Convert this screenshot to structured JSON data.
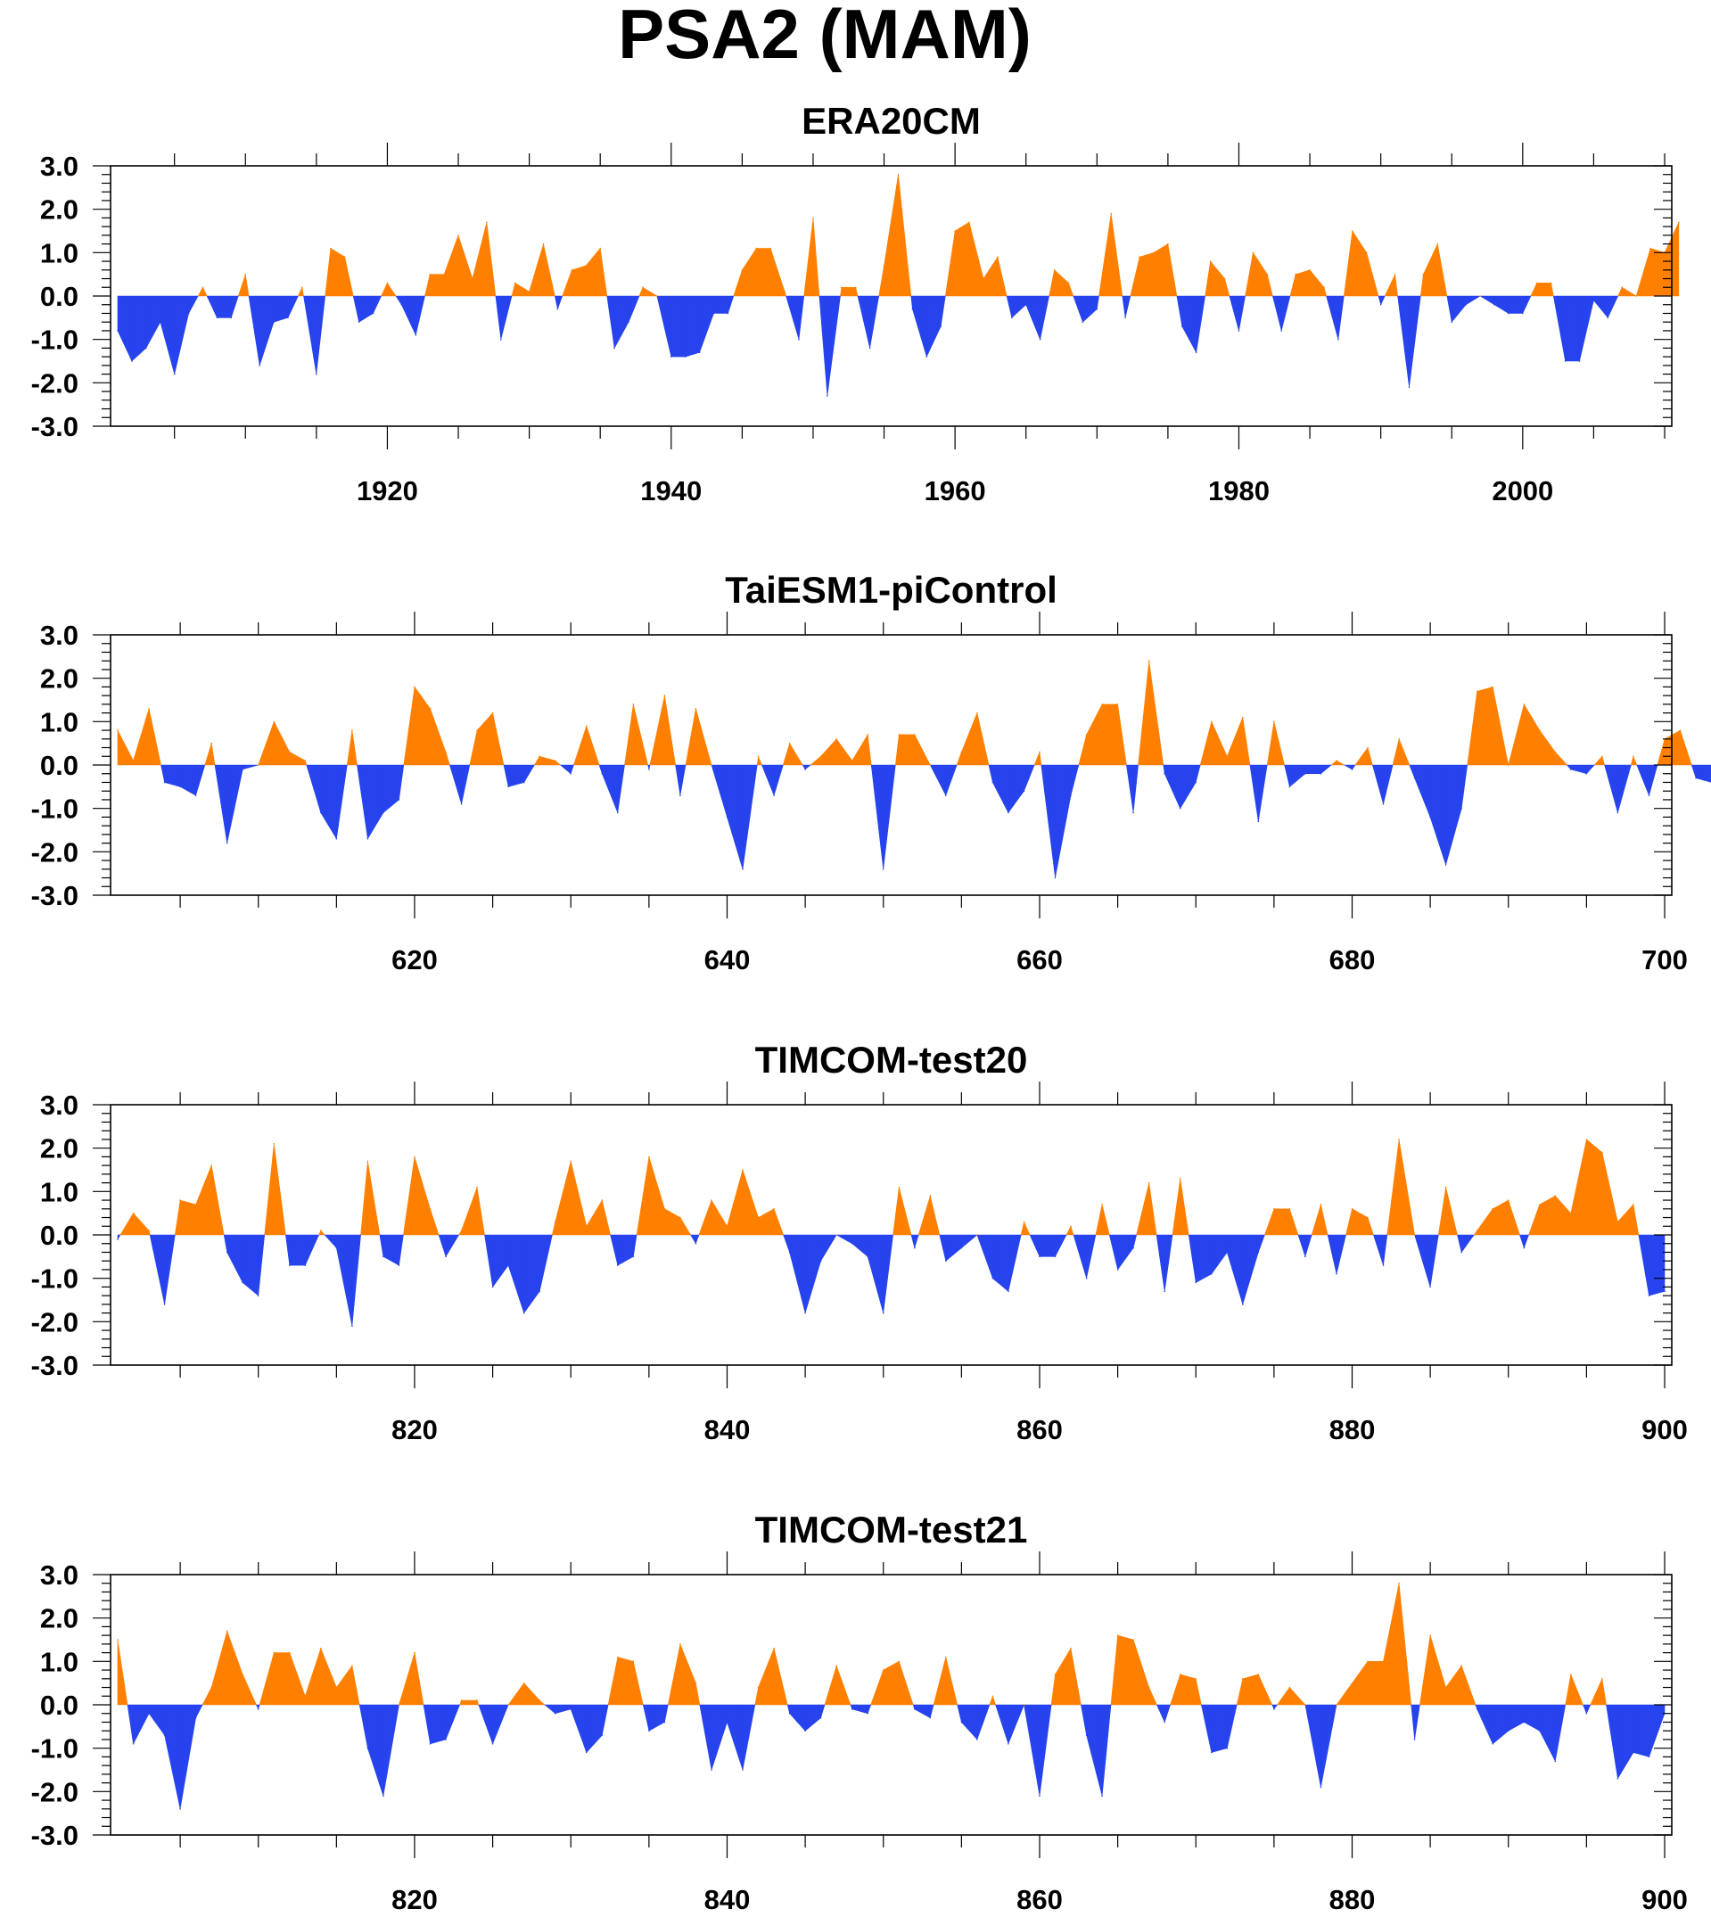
{
  "title": "PSA2 (MAM)",
  "colors": {
    "positive": "#ff8000",
    "negative": "#2643ee",
    "frame": "#000000"
  },
  "chart_data": [
    {
      "type": "area",
      "title": "ERA20CM",
      "xlim": [
        1901,
        2010
      ],
      "ylim": [
        -3,
        3
      ],
      "xticks": [
        1920,
        1940,
        1960,
        1980,
        2000
      ],
      "xtick_labels": [
        "1920",
        "1940",
        "1960",
        "1980",
        "2000"
      ],
      "yticks": [
        -3,
        -2,
        -1,
        0,
        1,
        2,
        3
      ],
      "ytick_labels": [
        "-3.0",
        "-2.0",
        "-1.0",
        "0.0",
        "1.0",
        "2.0",
        "3.0"
      ],
      "x_start": 1901,
      "values": [
        -0.8,
        -1.5,
        -1.2,
        -0.6,
        -1.8,
        -0.4,
        0.2,
        -0.5,
        -0.5,
        0.5,
        -1.6,
        -0.6,
        -0.5,
        0.2,
        -1.8,
        1.1,
        0.9,
        -0.6,
        -0.4,
        0.3,
        -0.2,
        -0.9,
        0.5,
        0.5,
        1.4,
        0.4,
        1.7,
        -1.0,
        0.3,
        0.1,
        1.2,
        -0.3,
        0.6,
        0.7,
        1.1,
        -1.2,
        -0.6,
        0.2,
        0.0,
        -1.4,
        -1.4,
        -1.3,
        -0.4,
        -0.4,
        0.6,
        1.1,
        1.1,
        0.1,
        -1.0,
        1.8,
        -2.3,
        0.2,
        0.2,
        -1.2,
        0.7,
        2.8,
        -0.3,
        -1.4,
        -0.7,
        1.5,
        1.7,
        0.4,
        0.9,
        -0.5,
        -0.2,
        -1.0,
        0.6,
        0.3,
        -0.6,
        -0.3,
        1.9,
        -0.5,
        0.9,
        1.0,
        1.2,
        -0.7,
        -1.3,
        0.8,
        0.4,
        -0.8,
        1.0,
        0.5,
        -0.8,
        0.5,
        0.6,
        0.2,
        -1.0,
        1.5,
        1.0,
        -0.2,
        0.5,
        -2.1,
        0.5,
        1.2,
        -0.6,
        -0.2,
        0.0,
        -0.2,
        -0.4,
        -0.4,
        0.3,
        0.3,
        -1.5,
        -1.5,
        -0.1,
        -0.5,
        0.2,
        0.0,
        1.1,
        1.0,
        1.7
      ]
    },
    {
      "type": "area",
      "title": "TaiESM1-piControl",
      "xlim": [
        601,
        700
      ],
      "ylim": [
        -3,
        3
      ],
      "xticks": [
        620,
        640,
        660,
        680,
        700
      ],
      "xtick_labels": [
        "620",
        "640",
        "660",
        "680",
        "700"
      ],
      "yticks": [
        -3,
        -2,
        -1,
        0,
        1,
        2,
        3
      ],
      "ytick_labels": [
        "-3.0",
        "-2.0",
        "-1.0",
        "0.0",
        "1.0",
        "2.0",
        "3.0"
      ],
      "x_start": 601,
      "values": [
        0.8,
        0.1,
        1.3,
        -0.4,
        -0.5,
        -0.7,
        0.5,
        -1.8,
        -0.1,
        0.0,
        1.0,
        0.3,
        0.1,
        -1.1,
        -1.7,
        0.8,
        -1.7,
        -1.1,
        -0.8,
        1.8,
        1.3,
        0.3,
        -0.9,
        0.8,
        1.2,
        -0.5,
        -0.4,
        0.2,
        0.1,
        -0.2,
        0.9,
        -0.2,
        -1.1,
        1.4,
        -0.1,
        1.6,
        -0.7,
        1.3,
        0.0,
        -1.2,
        -2.4,
        0.2,
        -0.7,
        0.5,
        -0.1,
        0.2,
        0.6,
        0.1,
        0.7,
        -2.4,
        0.7,
        0.7,
        0.0,
        -0.7,
        0.3,
        1.2,
        -0.4,
        -1.1,
        -0.6,
        0.3,
        -2.6,
        -0.7,
        0.7,
        1.4,
        1.4,
        -1.1,
        2.4,
        -0.2,
        -1.0,
        -0.4,
        1.0,
        0.2,
        1.1,
        -1.3,
        1.0,
        -0.5,
        -0.2,
        -0.2,
        0.1,
        -0.1,
        0.4,
        -0.9,
        0.6,
        -0.3,
        -1.2,
        -2.3,
        -1.0,
        1.7,
        1.8,
        0.0,
        1.4,
        0.8,
        0.3,
        -0.1,
        -0.2,
        0.2,
        -1.1,
        0.2,
        -0.7,
        0.6,
        0.8,
        -0.3,
        -0.4
      ]
    },
    {
      "type": "area",
      "title": "TIMCOM-test20",
      "xlim": [
        801,
        900
      ],
      "ylim": [
        -3,
        3
      ],
      "xticks": [
        820,
        840,
        860,
        880,
        900
      ],
      "xtick_labels": [
        "820",
        "840",
        "860",
        "880",
        "900"
      ],
      "yticks": [
        -3,
        -2,
        -1,
        0,
        1,
        2,
        3
      ],
      "ytick_labels": [
        "-3.0",
        "-2.0",
        "-1.0",
        "0.0",
        "1.0",
        "2.0",
        "3.0"
      ],
      "x_start": 801,
      "values": [
        -0.1,
        0.5,
        0.1,
        -1.6,
        0.8,
        0.7,
        1.6,
        -0.4,
        -1.1,
        -1.4,
        2.1,
        -0.7,
        -0.7,
        0.1,
        -0.3,
        -2.1,
        1.7,
        -0.5,
        -0.7,
        1.8,
        0.6,
        -0.5,
        0.1,
        1.1,
        -1.2,
        -0.7,
        -1.8,
        -1.3,
        0.3,
        1.7,
        0.2,
        0.8,
        -0.7,
        -0.5,
        1.8,
        0.6,
        0.4,
        -0.2,
        0.8,
        0.2,
        1.5,
        0.4,
        0.6,
        -0.4,
        -1.8,
        -0.6,
        0.0,
        -0.2,
        -0.5,
        -1.8,
        1.1,
        -0.3,
        0.9,
        -0.6,
        -0.3,
        0.0,
        -1.0,
        -1.3,
        0.3,
        -0.5,
        -0.5,
        0.2,
        -1.0,
        0.7,
        -0.8,
        -0.3,
        1.2,
        -1.3,
        1.3,
        -1.1,
        -0.9,
        -0.4,
        -1.6,
        -0.4,
        0.6,
        0.6,
        -0.5,
        0.7,
        -0.9,
        0.6,
        0.4,
        -0.7,
        2.2,
        0.0,
        -1.2,
        1.1,
        -0.4,
        0.1,
        0.6,
        0.8,
        -0.3,
        0.7,
        0.9,
        0.5,
        2.2,
        1.9,
        0.3,
        0.7,
        -1.4,
        -1.3
      ]
    },
    {
      "type": "area",
      "title": "TIMCOM-test21",
      "xlim": [
        801,
        900
      ],
      "ylim": [
        -3,
        3
      ],
      "xticks": [
        820,
        840,
        860,
        880,
        900
      ],
      "xtick_labels": [
        "820",
        "840",
        "860",
        "880",
        "900"
      ],
      "yticks": [
        -3,
        -2,
        -1,
        0,
        1,
        2,
        3
      ],
      "ytick_labels": [
        "-3.0",
        "-2.0",
        "-1.0",
        "0.0",
        "1.0",
        "2.0",
        "3.0"
      ],
      "x_start": 801,
      "values": [
        1.5,
        -0.9,
        -0.2,
        -0.7,
        -2.4,
        -0.3,
        0.4,
        1.7,
        0.7,
        -0.1,
        1.2,
        1.2,
        0.2,
        1.3,
        0.4,
        0.9,
        -1.0,
        -2.1,
        0.0,
        1.2,
        -0.9,
        -0.8,
        0.1,
        0.1,
        -0.9,
        0.0,
        0.5,
        0.1,
        -0.2,
        -0.1,
        -1.1,
        -0.7,
        1.1,
        1.0,
        -0.6,
        -0.4,
        1.4,
        0.5,
        -1.5,
        -0.4,
        -1.5,
        0.4,
        1.3,
        -0.2,
        -0.6,
        -0.3,
        0.9,
        -0.1,
        -0.2,
        0.8,
        1.0,
        -0.1,
        -0.3,
        1.1,
        -0.4,
        -0.8,
        0.2,
        -0.9,
        0.0,
        -2.1,
        0.7,
        1.3,
        -0.7,
        -2.1,
        1.6,
        1.5,
        0.4,
        -0.4,
        0.7,
        0.6,
        -1.1,
        -1.0,
        0.6,
        0.7,
        -0.1,
        0.4,
        0.0,
        -1.9,
        0.0,
        0.5,
        1.0,
        1.0,
        2.8,
        -0.8,
        1.6,
        0.4,
        0.9,
        -0.1,
        -0.9,
        -0.6,
        -0.4,
        -0.6,
        -1.3,
        0.7,
        -0.2,
        0.6,
        -1.7,
        -1.1,
        -1.2,
        -0.2
      ]
    }
  ]
}
